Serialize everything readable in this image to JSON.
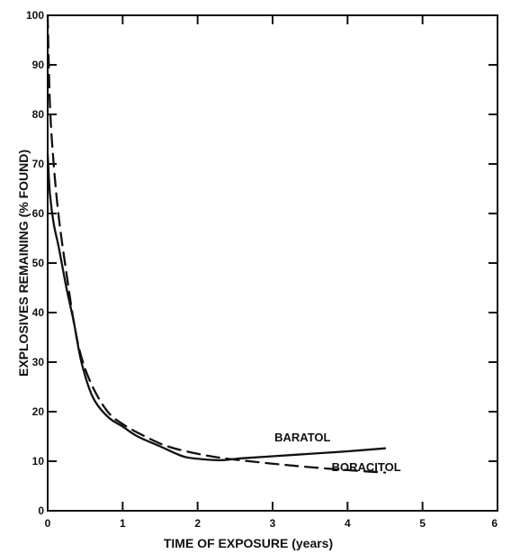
{
  "chart_data": {
    "type": "line",
    "title": "",
    "xlabel": "TIME OF EXPOSURE (years)",
    "ylabel": "EXPLOSIVES REMAINING (% FOUND)",
    "xlim": [
      0,
      6
    ],
    "ylim": [
      0,
      100
    ],
    "x_ticks": [
      0,
      1,
      2,
      3,
      4,
      5,
      6
    ],
    "y_ticks": [
      0,
      10,
      20,
      30,
      40,
      50,
      60,
      70,
      80,
      90,
      100
    ],
    "grid": false,
    "series": [
      {
        "name": "BARATOL",
        "style": "solid",
        "color": "#111111",
        "x": [
          0.0,
          0.03,
          0.08,
          0.15,
          0.25,
          0.35,
          0.45,
          0.6,
          0.8,
          1.0,
          1.2,
          1.5,
          1.8,
          2.0,
          2.3,
          2.6,
          3.0,
          3.5,
          4.0,
          4.5
        ],
        "y": [
          72,
          64,
          58,
          53,
          45,
          38,
          30,
          23,
          19,
          17,
          15,
          13,
          11,
          10.5,
          10.2,
          10.6,
          11,
          11.5,
          12,
          12.6
        ]
      },
      {
        "name": "BORACITOL",
        "style": "dashed",
        "color": "#111111",
        "x": [
          0.0,
          0.03,
          0.08,
          0.15,
          0.25,
          0.35,
          0.45,
          0.6,
          0.8,
          1.0,
          1.3,
          1.6,
          2.0,
          2.4,
          3.0,
          3.5,
          4.0,
          4.5
        ],
        "y": [
          100,
          82,
          70,
          59,
          48,
          38,
          31,
          25,
          20,
          17.5,
          15,
          13,
          11.5,
          10.5,
          9.5,
          8.8,
          8.2,
          7.7
        ]
      }
    ],
    "annotations": [
      {
        "text": "BARATOL",
        "series": 0
      },
      {
        "text": "BORACITOL",
        "series": 1
      }
    ]
  }
}
